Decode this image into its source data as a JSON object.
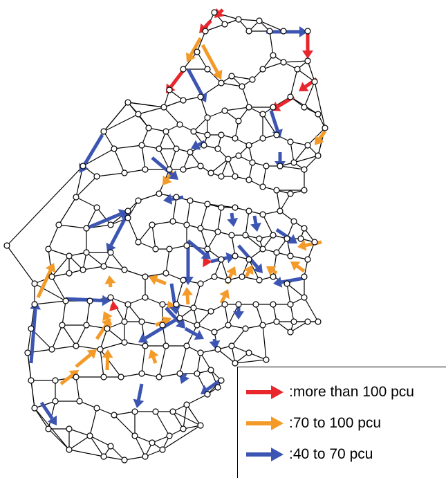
{
  "legend": {
    "items": [
      {
        "label": ":more than 100 pcu",
        "color": "#e8262b",
        "class": "red"
      },
      {
        "label": ":70 to 100 pcu",
        "color": "#f39a28",
        "class": "orange"
      },
      {
        "label": ":40 to 70 pcu",
        "color": "#3c55b2",
        "class": "blue"
      }
    ]
  },
  "flow_classes": {
    "red": "#e8262b",
    "orange": "#f39a28",
    "blue": "#3c55b2"
  },
  "icons": [
    "arrow-red-icon",
    "arrow-orange-icon",
    "arrow-blue-icon"
  ]
}
